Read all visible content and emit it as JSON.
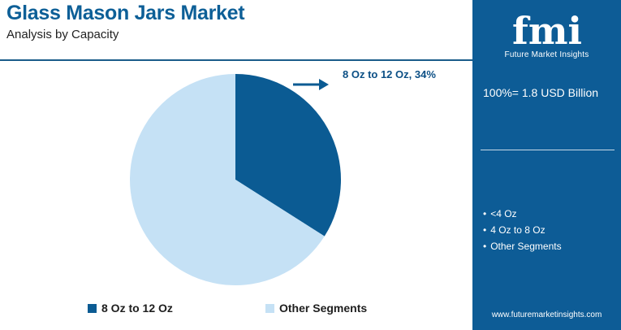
{
  "header": {
    "title": "Glass Mason Jars Market",
    "subtitle": "Analysis by Capacity"
  },
  "chart_data": {
    "type": "pie",
    "categories": [
      "8 Oz to 12 Oz",
      "Other Segments"
    ],
    "values": [
      34,
      66
    ],
    "colors": [
      "#0b5b93",
      "#c5e1f5"
    ],
    "slice_label": "8 Oz to 12 Oz, 34%",
    "legend": [
      "8 Oz to 12 Oz",
      "Other Segments"
    ],
    "legend_position": "bottom"
  },
  "panel": {
    "logo_text": "fmi",
    "logo_subtitle": "Future Market Insights",
    "total": "100%= 1.8 USD Billion",
    "segments": [
      "<4 Oz",
      "4 Oz to 8 Oz",
      "Other Segments"
    ],
    "website": "www.futuremarketinsights.com",
    "background_color": "#0d5c96"
  }
}
